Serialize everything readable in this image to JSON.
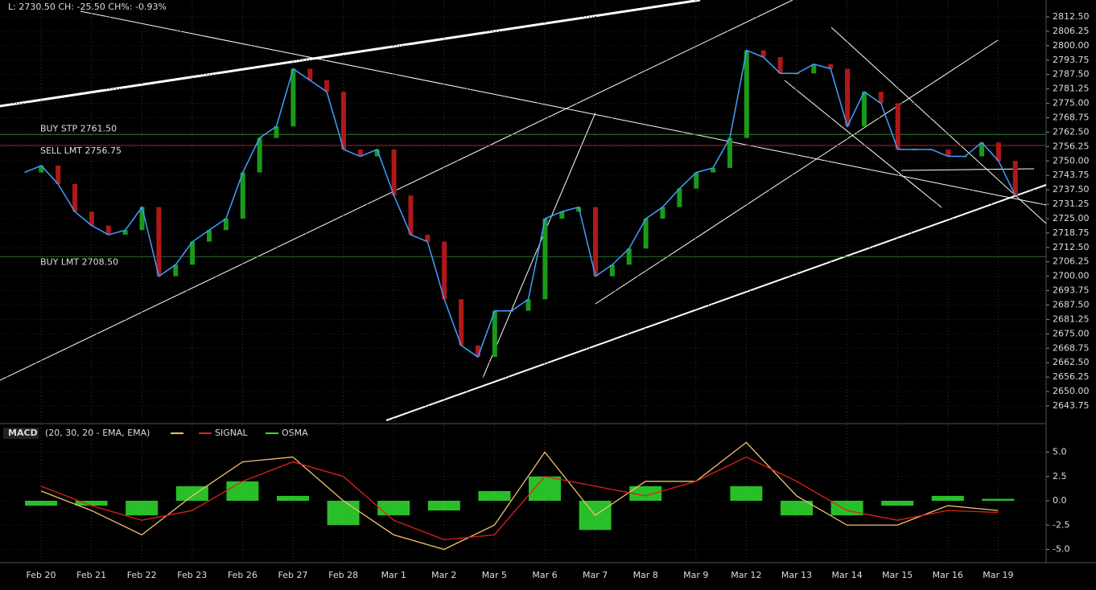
{
  "header": "L: 2730.50 CH: -25.50 CH%: -0.93%",
  "dates": [
    "Feb 20",
    "Feb 21",
    "Feb 22",
    "Feb 23",
    "Feb 26",
    "Feb 27",
    "Feb 28",
    "Mar 1",
    "Mar 2",
    "Mar 5",
    "Mar 6",
    "Mar 7",
    "Mar 8",
    "Mar 9",
    "Mar 12",
    "Mar 13",
    "Mar 14",
    "Mar 15",
    "Mar 16",
    "Mar 19"
  ],
  "price": {
    "ylim": [
      2812.5,
      2643.75
    ],
    "yticks": [
      {
        "value": 2812.5,
        "label": "2812.50"
      },
      {
        "value": 2806.25,
        "label": "2806.25"
      },
      {
        "value": 2800,
        "label": "2800.00"
      },
      {
        "value": 2793.75,
        "label": "2793.75"
      },
      {
        "value": 2787.5,
        "label": "2787.50"
      },
      {
        "value": 2781.25,
        "label": "2781.25"
      },
      {
        "value": 2775,
        "label": "2775.00"
      },
      {
        "value": 2768.75,
        "label": "2768.75"
      },
      {
        "value": 2762.5,
        "label": "2762.50"
      },
      {
        "value": 2756.25,
        "label": "2756.25"
      },
      {
        "value": 2750,
        "label": "2750.00"
      },
      {
        "value": 2743.75,
        "label": "2743.75"
      },
      {
        "value": 2737.5,
        "label": "2737.50"
      },
      {
        "value": 2731.25,
        "label": "2731.25"
      },
      {
        "value": 2725,
        "label": "2725.00"
      },
      {
        "value": 2718.75,
        "label": "2718.75"
      },
      {
        "value": 2712.5,
        "label": "2712.50"
      },
      {
        "value": 2706.25,
        "label": "2706.25"
      },
      {
        "value": 2700,
        "label": "2700.00"
      },
      {
        "value": 2693.75,
        "label": "2693.75"
      },
      {
        "value": 2687.5,
        "label": "2687.50"
      },
      {
        "value": 2681.25,
        "label": "2681.25"
      },
      {
        "value": 2675,
        "label": "2675.00"
      },
      {
        "value": 2668.75,
        "label": "2668.75"
      },
      {
        "value": 2662.5,
        "label": "2662.50"
      },
      {
        "value": 2656.25,
        "label": "2656.25"
      },
      {
        "value": 2650,
        "label": "2650.00"
      },
      {
        "value": 2643.75,
        "label": "2643.75"
      }
    ],
    "close": [
      2745,
      2748,
      2740,
      2728,
      2722,
      2718,
      2720,
      2730,
      2700,
      2705,
      2715,
      2720,
      2725,
      2745,
      2760,
      2765,
      2790,
      2785,
      2780,
      2755,
      2752,
      2755,
      2735,
      2718,
      2715,
      2690,
      2670,
      2665,
      2685,
      2685,
      2690,
      2725,
      2728,
      2730,
      2700,
      2705,
      2712,
      2725,
      2730,
      2738,
      2745,
      2747,
      2760,
      2798,
      2795,
      2788,
      2788,
      2792,
      2790,
      2765,
      2780,
      2775,
      2755,
      2755,
      2755,
      2752,
      2752,
      2758,
      2750,
      2735
    ],
    "color": "#3fa0ff",
    "orders": [
      {
        "label": "BUY STP 2761.50",
        "price": 2761.5,
        "color": "#2e8b2e"
      },
      {
        "label": "SELL LMT 2756.75",
        "price": 2756.75,
        "color": "#a02020"
      },
      {
        "label": "BUY LMT 2708.50",
        "price": 2708.5,
        "color": "#2e6b2e"
      }
    ]
  },
  "macd": {
    "title": "MACD",
    "params": "(20, 30, 20 - EMA, EMA)",
    "signal_name": "SIGNAL",
    "osma_name": "OSMA",
    "ylim": [
      7,
      -7
    ],
    "yticks": [
      {
        "value": 5,
        "label": "5.0"
      },
      {
        "value": 2.5,
        "label": "2.5"
      },
      {
        "value": 0,
        "label": "0.0"
      },
      {
        "value": -2.5,
        "label": "-2.5"
      },
      {
        "value": -5,
        "label": "-5.0"
      }
    ],
    "macd": [
      1.0,
      -1.0,
      -3.5,
      0.5,
      4.0,
      4.5,
      0.0,
      -3.5,
      -5.0,
      -2.5,
      5.0,
      -1.5,
      2.0,
      2.0,
      6.0,
      0.5,
      -2.5,
      -2.5,
      -0.5,
      -1.0
    ],
    "signal": [
      1.5,
      -0.5,
      -2.0,
      -1.0,
      2.0,
      4.0,
      2.5,
      -2.0,
      -4.0,
      -3.5,
      2.5,
      1.5,
      0.5,
      2.0,
      4.5,
      2.0,
      -1.0,
      -2.0,
      -1.0,
      -1.2
    ],
    "osma": [
      -0.5,
      -0.5,
      -1.5,
      1.5,
      2.0,
      0.5,
      -2.5,
      -1.5,
      -1.0,
      1.0,
      2.5,
      -3.0,
      1.5,
      0,
      1.5,
      -1.5,
      -1.5,
      -0.5,
      0.5,
      0.2
    ],
    "macd_color": "#f0c070",
    "signal_color": "#e02020",
    "osma_color": "#30e030"
  }
}
